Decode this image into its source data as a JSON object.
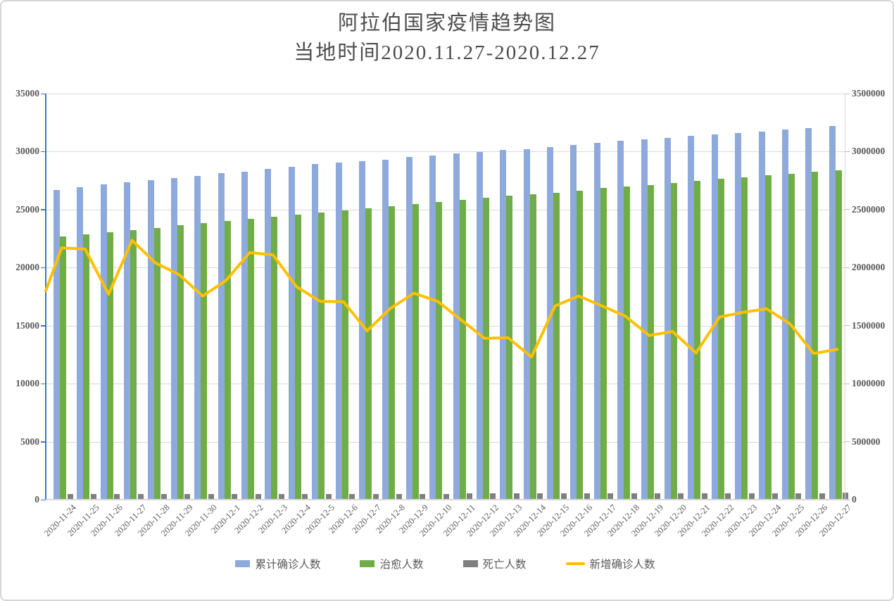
{
  "chart_data": {
    "type": "bar+line",
    "title": "阿拉伯国家疫情趋势图",
    "subtitle": "当地时间2020.11.27-2020.12.27",
    "grid": true,
    "legend_position": "bottom",
    "categories": [
      "2020-11-24",
      "2020-11-25",
      "2020-11-26",
      "2020-11-27",
      "2020-11-28",
      "2020-11-29",
      "2020-11-30",
      "2020-12-1",
      "2020-12-2",
      "2020-12-3",
      "2020-12-4",
      "2020-12-5",
      "2020-12-6",
      "2020-12-7",
      "2020-12-8",
      "2020-12-9",
      "2020-12-10",
      "2020-12-11",
      "2020-12-12",
      "2020-12-13",
      "2020-12-14",
      "2020-12-15",
      "2020-12-16",
      "2020-12-17",
      "2020-12-18",
      "2020-12-19",
      "2020-12-20",
      "2020-12-21",
      "2020-12-22",
      "2020-12-23",
      "2020-12-24",
      "2020-12-25",
      "2020-12-26",
      "2020-12-27"
    ],
    "series": [
      {
        "id": "cumulative-confirmed",
        "name": "累计确诊人数",
        "type": "bar",
        "axis": "right",
        "color": "#8EA9DB",
        "values": [
          2669000,
          2695000,
          2716000,
          2734000,
          2756000,
          2774000,
          2792000,
          2814000,
          2827000,
          2851000,
          2871000,
          2891000,
          2904000,
          2918000,
          2931000,
          2952000,
          2968000,
          2987000,
          2999000,
          3013000,
          3023000,
          3039000,
          3059000,
          3078000,
          3092000,
          3108000,
          3119000,
          3134000,
          3150000,
          3160000,
          3175000,
          3190000,
          3203000,
          3221000
        ]
      },
      {
        "id": "cured",
        "name": "治愈人数",
        "type": "bar",
        "axis": "right",
        "color": "#70AD47",
        "values": [
          2269000,
          2287000,
          2305000,
          2323000,
          2340000,
          2364000,
          2382000,
          2400000,
          2420000,
          2437000,
          2456000,
          2473000,
          2493000,
          2511000,
          2531000,
          2548000,
          2568000,
          2584000,
          2604000,
          2622000,
          2634000,
          2648000,
          2665000,
          2685000,
          2699000,
          2713000,
          2730000,
          2746000,
          2766000,
          2776000,
          2796000,
          2810000,
          2827000,
          2841000
        ]
      },
      {
        "id": "deaths",
        "name": "死亡人数",
        "type": "bar",
        "axis": "right",
        "color": "#7F7F7F",
        "values": [
          46000,
          46400,
          46700,
          47100,
          47500,
          47800,
          48200,
          48500,
          48900,
          49300,
          49600,
          50000,
          50400,
          50700,
          51100,
          51500,
          51800,
          52200,
          52500,
          52900,
          53300,
          53600,
          54000,
          54400,
          54700,
          55100,
          55500,
          55800,
          56200,
          56500,
          56900,
          57300,
          57600,
          58000
        ]
      },
      {
        "id": "new-confirmed",
        "name": "新增确诊人数",
        "type": "line",
        "axis": "left",
        "color": "#FFC000",
        "values": [
          21700,
          21600,
          17700,
          22350,
          20400,
          19400,
          17550,
          18900,
          21300,
          21100,
          18350,
          17100,
          17050,
          14550,
          16500,
          17800,
          17100,
          15500,
          13900,
          13950,
          12300,
          16700,
          17550,
          16700,
          15800,
          14150,
          14500,
          12650,
          15750,
          16150,
          16450,
          15150,
          12600,
          12950
        ]
      }
    ],
    "line_lead_value": 18000,
    "left_axis": {
      "min": 0,
      "max": 35000,
      "step": 5000,
      "tick_labels": [
        "0",
        "5000",
        "10000",
        "15000",
        "20000",
        "25000",
        "30000",
        "35000"
      ]
    },
    "right_axis": {
      "min": 0,
      "max": 3500000,
      "step": 500000,
      "tick_labels": [
        "0",
        "500000",
        "1000000",
        "1500000",
        "2000000",
        "2500000",
        "3000000",
        "3500000"
      ]
    },
    "colors": {
      "axis_line_left": "#4472C4",
      "axis_line_right": "#D9D9D9",
      "gridline": "#D9D9D9",
      "tick_label": "#595959",
      "title_text": "#4D4D4D",
      "date_label": "#595959",
      "background": "#FFFFFF"
    }
  }
}
